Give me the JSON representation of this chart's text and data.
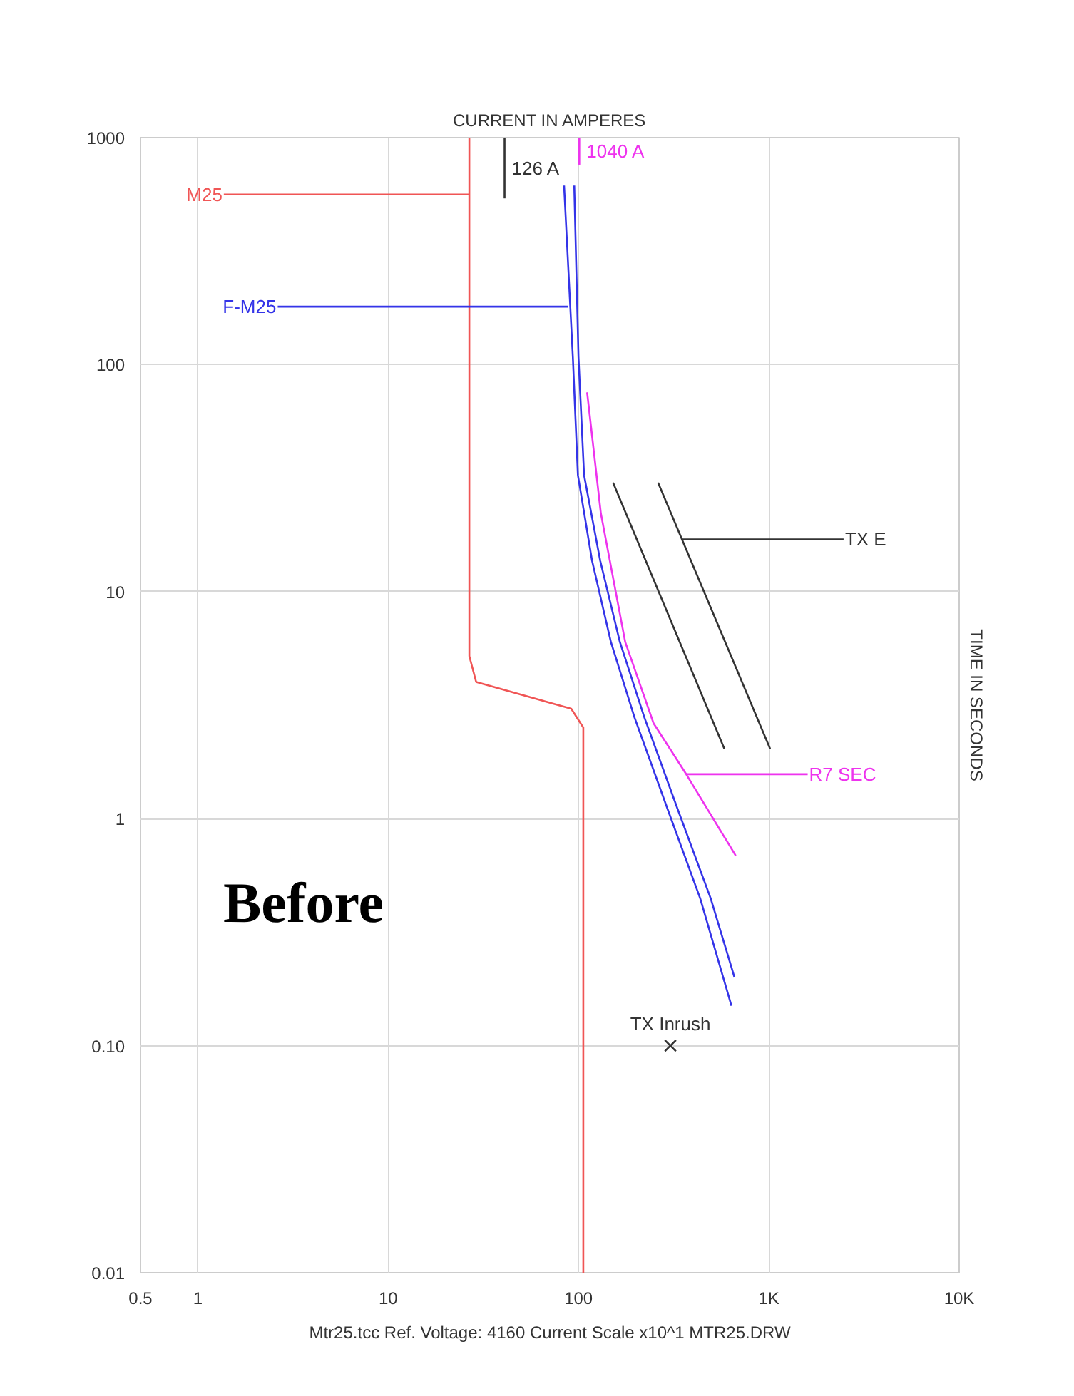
{
  "chart_data": {
    "type": "line",
    "xlabel": "CURRENT IN AMPERES",
    "ylabel": "TIME IN SECONDS",
    "annotations": [
      "Before",
      "Mtr25.tcc Ref. Voltage: 4160 Current Scale x10^1 MTR25.DRW"
    ],
    "log": "xy",
    "grid": true,
    "line_style": "solid",
    "xlim": [
      0.5,
      10000
    ],
    "xticks": [
      0.5,
      1,
      10,
      100,
      {
        "value": 1000,
        "label": "1K"
      },
      {
        "value": 10000,
        "label": "10K"
      }
    ],
    "ylim": [
      0.01,
      1000
    ],
    "yticks": [
      0.01,
      {
        "value": 0.1,
        "label": "0.10"
      },
      1,
      10,
      100,
      1000
    ],
    "series": [
      {
        "color": "#f05555",
        "x": [
          26.7,
          26.7,
          29.0,
          91.6,
          106,
          106
        ],
        "values": [
          1000,
          5.2,
          4.0,
          3.05,
          2.52,
          0.01
        ]
      },
      {
        "color": "#3434e8",
        "x": [
          84,
          93.4,
          99.3,
          117.8,
          148,
          197,
          294,
          436,
          636
        ],
        "values": [
          615,
          108,
          32.6,
          13.7,
          6.0,
          2.79,
          1.1,
          0.445,
          0.15
        ]
      },
      {
        "color": "#3434e8",
        "x": [
          95,
          100,
          107,
          130,
          165,
          222,
          332,
          495,
          660
        ],
        "values": [
          615,
          108,
          32.6,
          13.7,
          6.0,
          2.79,
          1.1,
          0.445,
          0.2
        ]
      },
      {
        "color": "#ee33ee",
        "x": [
          111,
          131,
          176,
          248,
          368,
          670
        ],
        "values": [
          75.5,
          22.2,
          6.0,
          2.63,
          1.57,
          0.687
        ]
      },
      {
        "color": "#333333",
        "x": [
          152,
          584
        ],
        "values": [
          30.2,
          2.03
        ]
      },
      {
        "color": "#333333",
        "x": [
          262,
          1016
        ],
        "values": [
          30.2,
          2.03
        ]
      },
      {
        "name": "M25",
        "color": "#f05555",
        "x": [
          1.37,
          26.7
        ],
        "values": [
          562,
          562
        ]
      },
      {
        "name": "F-M25",
        "color": "#3434e8",
        "x": [
          2.63,
          88.4
        ],
        "values": [
          180,
          180
        ]
      },
      {
        "name": "TX E",
        "color": "#333333",
        "x": [
          2470,
          349
        ],
        "values": [
          17.0,
          17.0
        ]
      },
      {
        "name": "R7 SEC",
        "color": "#ee33ee",
        "x": [
          1600,
          368
        ],
        "values": [
          1.57,
          1.57
        ]
      },
      {
        "name": "126 A",
        "color": "#333333",
        "x": [
          40.9,
          40.9
        ],
        "values": [
          1000,
          540
        ]
      },
      {
        "name": "1040 A",
        "color": "#ee33ee",
        "x": [
          101,
          101
        ],
        "values": [
          1000,
          760
        ]
      },
      {
        "type": "scatter",
        "name": "TX Inrush",
        "color": "#333333",
        "marker": "cross",
        "x": [
          304
        ],
        "values": [
          0.1
        ]
      }
    ]
  }
}
